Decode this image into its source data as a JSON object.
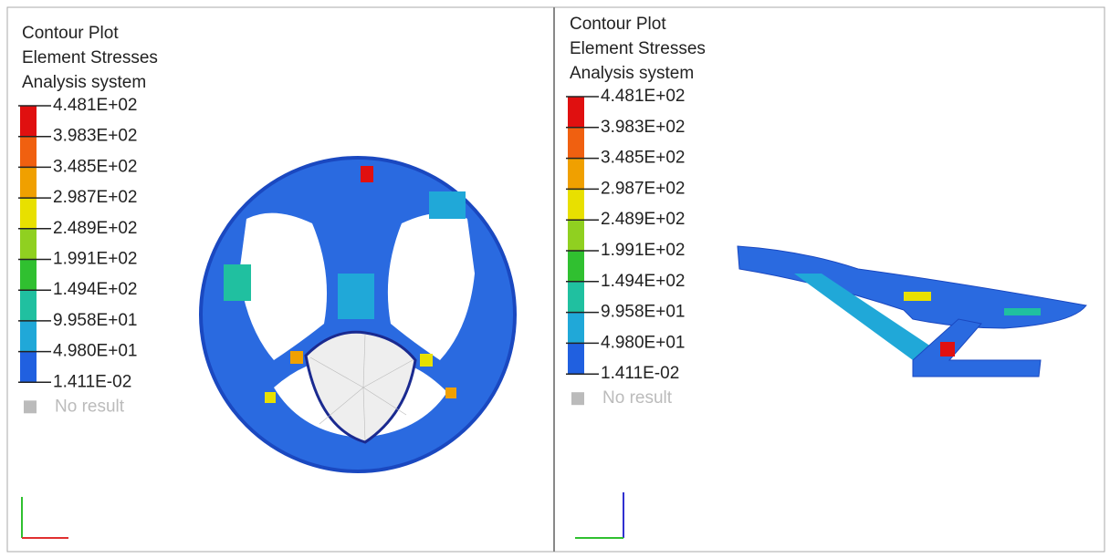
{
  "panels": [
    {
      "title_lines": [
        "Contour Plot",
        "Element Stresses",
        "Analysis system"
      ],
      "legend_labels": [
        "4.481E+02",
        "3.983E+02",
        "3.485E+02",
        "2.987E+02",
        "2.489E+02",
        "1.991E+02",
        "1.494E+02",
        "9.958E+01",
        "4.980E+01",
        "1.411E-02"
      ],
      "no_result": "No result"
    },
    {
      "title_lines": [
        "Contour Plot",
        "Element Stresses",
        "Analysis system"
      ],
      "legend_labels": [
        "4.481E+02",
        "3.983E+02",
        "3.485E+02",
        "2.987E+02",
        "2.489E+02",
        "1.991E+02",
        "1.494E+02",
        "9.958E+01",
        "4.980E+01",
        "1.411E-02"
      ],
      "no_result": "No result"
    }
  ]
}
